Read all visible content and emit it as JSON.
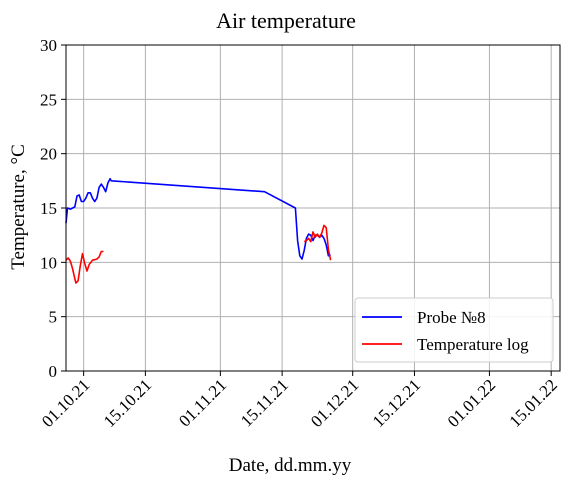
{
  "chart_data": {
    "type": "line",
    "title": "Air temperature",
    "xlabel": "Date, dd.mm.yy",
    "ylabel": "Temperature, °C",
    "xlim": [
      "2021-09-27",
      "2022-01-17"
    ],
    "ylim": [
      0,
      30
    ],
    "grid": true,
    "legend_position": "bottom-right",
    "x_ticks": [
      "01.10.21",
      "15.10.21",
      "01.11.21",
      "15.11.21",
      "01.12.21",
      "15.12.21",
      "01.01.22",
      "15.01.22"
    ],
    "x_tick_dates": [
      "2021-10-01",
      "2021-10-15",
      "2021-11-01",
      "2021-11-15",
      "2021-12-01",
      "2021-12-15",
      "2022-01-01",
      "2022-01-15"
    ],
    "y_ticks": [
      0,
      5,
      10,
      15,
      20,
      25,
      30
    ],
    "series": [
      {
        "name": "Probe №8",
        "color": "#0000ff",
        "segments": [
          [
            {
              "x": "2021-09-27T00:00",
              "y": 13.6
            },
            {
              "x": "2021-09-27T08:00",
              "y": 15.0
            },
            {
              "x": "2021-09-28T00:00",
              "y": 14.9
            },
            {
              "x": "2021-09-29T00:00",
              "y": 15.1
            },
            {
              "x": "2021-09-29T12:00",
              "y": 16.1
            },
            {
              "x": "2021-09-30T00:00",
              "y": 16.2
            },
            {
              "x": "2021-09-30T12:00",
              "y": 15.6
            },
            {
              "x": "2021-10-01T00:00",
              "y": 15.6
            },
            {
              "x": "2021-10-01T12:00",
              "y": 15.9
            },
            {
              "x": "2021-10-02T00:00",
              "y": 16.4
            },
            {
              "x": "2021-10-02T12:00",
              "y": 16.4
            },
            {
              "x": "2021-10-03T00:00",
              "y": 15.9
            },
            {
              "x": "2021-10-03T12:00",
              "y": 15.6
            },
            {
              "x": "2021-10-04T00:00",
              "y": 15.9
            },
            {
              "x": "2021-10-04T12:00",
              "y": 16.9
            },
            {
              "x": "2021-10-05T00:00",
              "y": 17.2
            },
            {
              "x": "2021-10-05T12:00",
              "y": 16.9
            },
            {
              "x": "2021-10-06T00:00",
              "y": 16.5
            },
            {
              "x": "2021-10-06T12:00",
              "y": 17.3
            },
            {
              "x": "2021-10-07T00:00",
              "y": 17.7
            },
            {
              "x": "2021-10-07T06:00",
              "y": 17.5
            },
            {
              "x": "2021-11-11T00:00",
              "y": 16.5
            },
            {
              "x": "2021-11-18T00:00",
              "y": 15.0
            },
            {
              "x": "2021-11-18T12:00",
              "y": 12.0
            },
            {
              "x": "2021-11-19T00:00",
              "y": 10.6
            },
            {
              "x": "2021-11-19T12:00",
              "y": 10.3
            },
            {
              "x": "2021-11-20T00:00",
              "y": 11.1
            },
            {
              "x": "2021-11-20T12:00",
              "y": 12.2
            },
            {
              "x": "2021-11-21T00:00",
              "y": 12.6
            },
            {
              "x": "2021-11-21T12:00",
              "y": 12.5
            },
            {
              "x": "2021-11-22T00:00",
              "y": 12.0
            },
            {
              "x": "2021-11-22T12:00",
              "y": 12.5
            },
            {
              "x": "2021-11-23T00:00",
              "y": 12.5
            },
            {
              "x": "2021-11-23T12:00",
              "y": 12.3
            },
            {
              "x": "2021-11-24T00:00",
              "y": 12.5
            },
            {
              "x": "2021-11-24T12:00",
              "y": 12.2
            },
            {
              "x": "2021-11-25T00:00",
              "y": 11.6
            },
            {
              "x": "2021-11-25T12:00",
              "y": 10.6
            },
            {
              "x": "2021-11-26T00:00",
              "y": 10.7
            }
          ]
        ]
      },
      {
        "name": "Temperature log",
        "color": "#ff0000",
        "segments": [
          [
            {
              "x": "2021-09-27T00:00",
              "y": 10.2
            },
            {
              "x": "2021-09-27T12:00",
              "y": 10.4
            },
            {
              "x": "2021-09-28T00:00",
              "y": 10.1
            },
            {
              "x": "2021-09-28T12:00",
              "y": 9.4
            },
            {
              "x": "2021-09-29T00:00",
              "y": 8.5
            },
            {
              "x": "2021-09-29T06:00",
              "y": 8.1
            },
            {
              "x": "2021-09-29T18:00",
              "y": 8.3
            },
            {
              "x": "2021-09-30T06:00",
              "y": 9.7
            },
            {
              "x": "2021-09-30T18:00",
              "y": 10.8
            },
            {
              "x": "2021-10-01T06:00",
              "y": 9.9
            },
            {
              "x": "2021-10-01T18:00",
              "y": 9.2
            },
            {
              "x": "2021-10-02T06:00",
              "y": 9.8
            },
            {
              "x": "2021-10-03T00:00",
              "y": 10.2
            },
            {
              "x": "2021-10-04T00:00",
              "y": 10.3
            },
            {
              "x": "2021-10-04T12:00",
              "y": 10.5
            },
            {
              "x": "2021-10-05T00:00",
              "y": 11.0
            },
            {
              "x": "2021-10-05T12:00",
              "y": 11.0
            }
          ],
          [
            {
              "x": "2021-11-20T00:00",
              "y": 11.9
            },
            {
              "x": "2021-11-20T12:00",
              "y": 12.0
            },
            {
              "x": "2021-11-21T00:00",
              "y": 12.2
            },
            {
              "x": "2021-11-21T12:00",
              "y": 11.9
            },
            {
              "x": "2021-11-22T00:00",
              "y": 12.8
            },
            {
              "x": "2021-11-22T12:00",
              "y": 12.3
            },
            {
              "x": "2021-11-23T00:00",
              "y": 12.6
            },
            {
              "x": "2021-11-23T12:00",
              "y": 12.3
            },
            {
              "x": "2021-11-24T00:00",
              "y": 12.7
            },
            {
              "x": "2021-11-24T12:00",
              "y": 13.4
            },
            {
              "x": "2021-11-25T00:00",
              "y": 13.2
            },
            {
              "x": "2021-11-25T12:00",
              "y": 11.2
            },
            {
              "x": "2021-11-26T00:00",
              "y": 10.2
            }
          ]
        ]
      }
    ]
  }
}
